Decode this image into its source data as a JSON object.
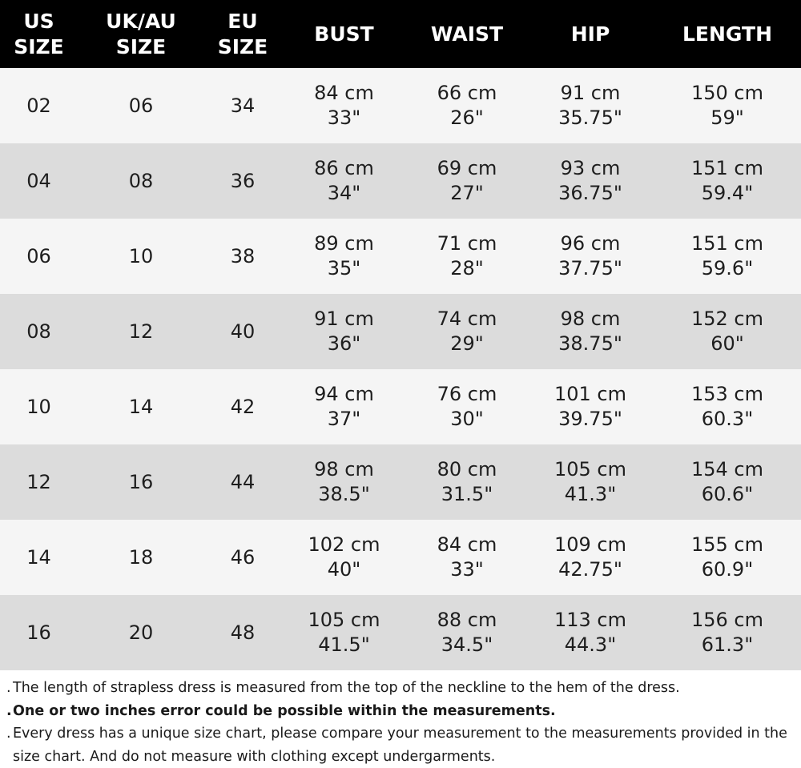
{
  "table": {
    "headers": [
      [
        "US",
        "SIZE"
      ],
      [
        "UK/AU",
        "SIZE"
      ],
      [
        "EU",
        "SIZE"
      ],
      [
        "BUST"
      ],
      [
        "WAIST"
      ],
      [
        "HIP"
      ],
      [
        "LENGTH"
      ]
    ],
    "rows": [
      {
        "us": "02",
        "uk": "06",
        "eu": "34",
        "bust": [
          "84 cm",
          "33\""
        ],
        "waist": [
          "66 cm",
          "26\""
        ],
        "hip": [
          "91 cm",
          "35.75\""
        ],
        "length": [
          "150 cm",
          "59\""
        ]
      },
      {
        "us": "04",
        "uk": "08",
        "eu": "36",
        "bust": [
          "86 cm",
          "34\""
        ],
        "waist": [
          "69 cm",
          "27\""
        ],
        "hip": [
          "93 cm",
          "36.75\""
        ],
        "length": [
          "151 cm",
          "59.4\""
        ]
      },
      {
        "us": "06",
        "uk": "10",
        "eu": "38",
        "bust": [
          "89 cm",
          "35\""
        ],
        "waist": [
          "71 cm",
          "28\""
        ],
        "hip": [
          "96 cm",
          "37.75\""
        ],
        "length": [
          "151 cm",
          "59.6\""
        ]
      },
      {
        "us": "08",
        "uk": "12",
        "eu": "40",
        "bust": [
          "91 cm",
          "36\""
        ],
        "waist": [
          "74 cm",
          "29\""
        ],
        "hip": [
          "98 cm",
          "38.75\""
        ],
        "length": [
          "152 cm",
          "60\""
        ]
      },
      {
        "us": "10",
        "uk": "14",
        "eu": "42",
        "bust": [
          "94 cm",
          "37\""
        ],
        "waist": [
          "76 cm",
          "30\""
        ],
        "hip": [
          "101 cm",
          "39.75\""
        ],
        "length": [
          "153 cm",
          "60.3\""
        ]
      },
      {
        "us": "12",
        "uk": "16",
        "eu": "44",
        "bust": [
          "98 cm",
          "38.5\""
        ],
        "waist": [
          "80 cm",
          "31.5\""
        ],
        "hip": [
          "105 cm",
          "41.3\""
        ],
        "length": [
          "154 cm",
          "60.6\""
        ]
      },
      {
        "us": "14",
        "uk": "18",
        "eu": "46",
        "bust": [
          "102 cm",
          "40\""
        ],
        "waist": [
          "84 cm",
          "33\""
        ],
        "hip": [
          "109 cm",
          "42.75\""
        ],
        "length": [
          "155 cm",
          "60.9\""
        ]
      },
      {
        "us": "16",
        "uk": "20",
        "eu": "48",
        "bust": [
          "105 cm",
          "41.5\""
        ],
        "waist": [
          "88 cm",
          "34.5\""
        ],
        "hip": [
          "113 cm",
          "44.3\""
        ],
        "length": [
          "156 cm",
          "61.3\""
        ]
      }
    ]
  },
  "notes": [
    {
      "bullet": ".",
      "text": "The length of strapless dress is measured from the top of the neckline to the hem of the dress.",
      "bold": false
    },
    {
      "bullet": ".",
      "text": "One or two inches error could be possible within the measurements.",
      "bold": true
    },
    {
      "bullet": ".",
      "text": "Every dress has a unique size chart, please compare your measurement to the measurements provided in the size chart. And do not measure with clothing except undergarments.",
      "bold": false
    }
  ],
  "colors": {
    "header_bg": "#000000",
    "header_text": "#ffffff",
    "row_light": "#f5f5f5",
    "row_dark": "#dcdcdc"
  }
}
